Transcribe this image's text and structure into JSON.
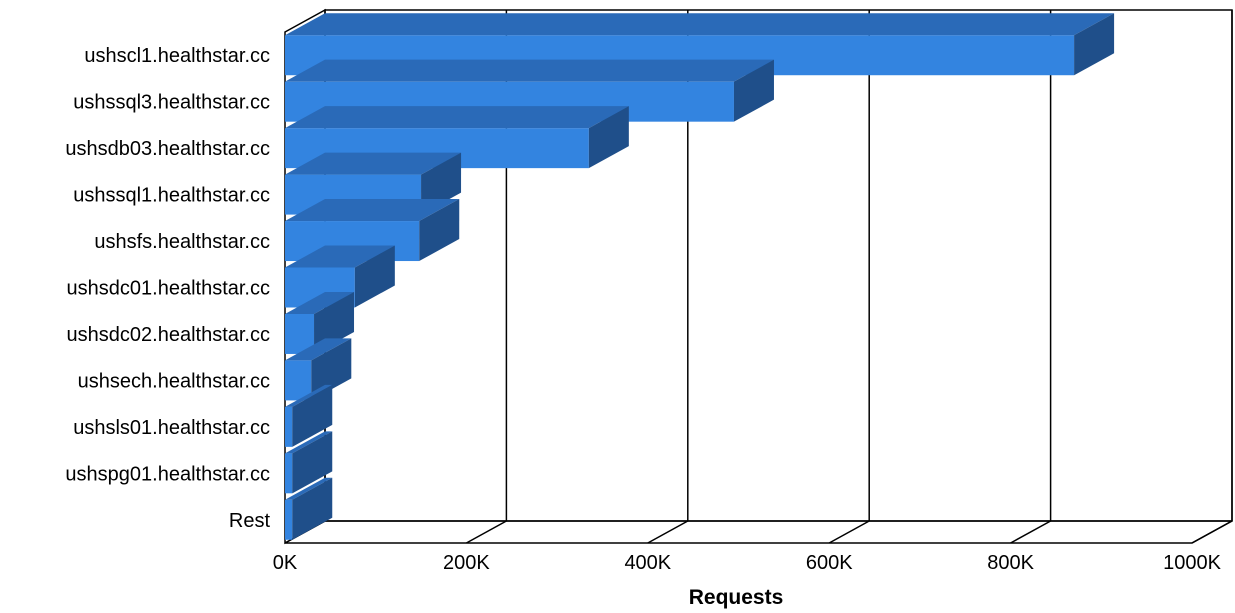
{
  "chart_data": {
    "type": "bar",
    "orientation": "horizontal",
    "style": "3d",
    "categories": [
      "ushscl1.healthstar.cc",
      "ushssql3.healthstar.cc",
      "ushsdb03.healthstar.cc",
      "ushssql1.healthstar.cc",
      "ushsfs.healthstar.cc",
      "ushsdc01.healthstar.cc",
      "ushsdc02.healthstar.cc",
      "ushsech.healthstar.cc",
      "ushsls01.healthstar.cc",
      "ushspg01.healthstar.cc",
      "Rest"
    ],
    "values": [
      870000,
      495000,
      335000,
      150000,
      148000,
      77000,
      32000,
      29000,
      8000,
      8000,
      8000
    ],
    "xlabel": "Requests",
    "ylabel": "",
    "xlim": [
      0,
      1000000
    ],
    "ticks": [
      "0K",
      "200K",
      "400K",
      "600K",
      "800K",
      "1000K"
    ],
    "grid": true,
    "legend": "none",
    "colors": {
      "bar_front": "#3384e0",
      "bar_top": "#2a6ab8",
      "bar_side": "#1f4f8a",
      "background": "#ffffff",
      "lines": "#000000"
    }
  }
}
